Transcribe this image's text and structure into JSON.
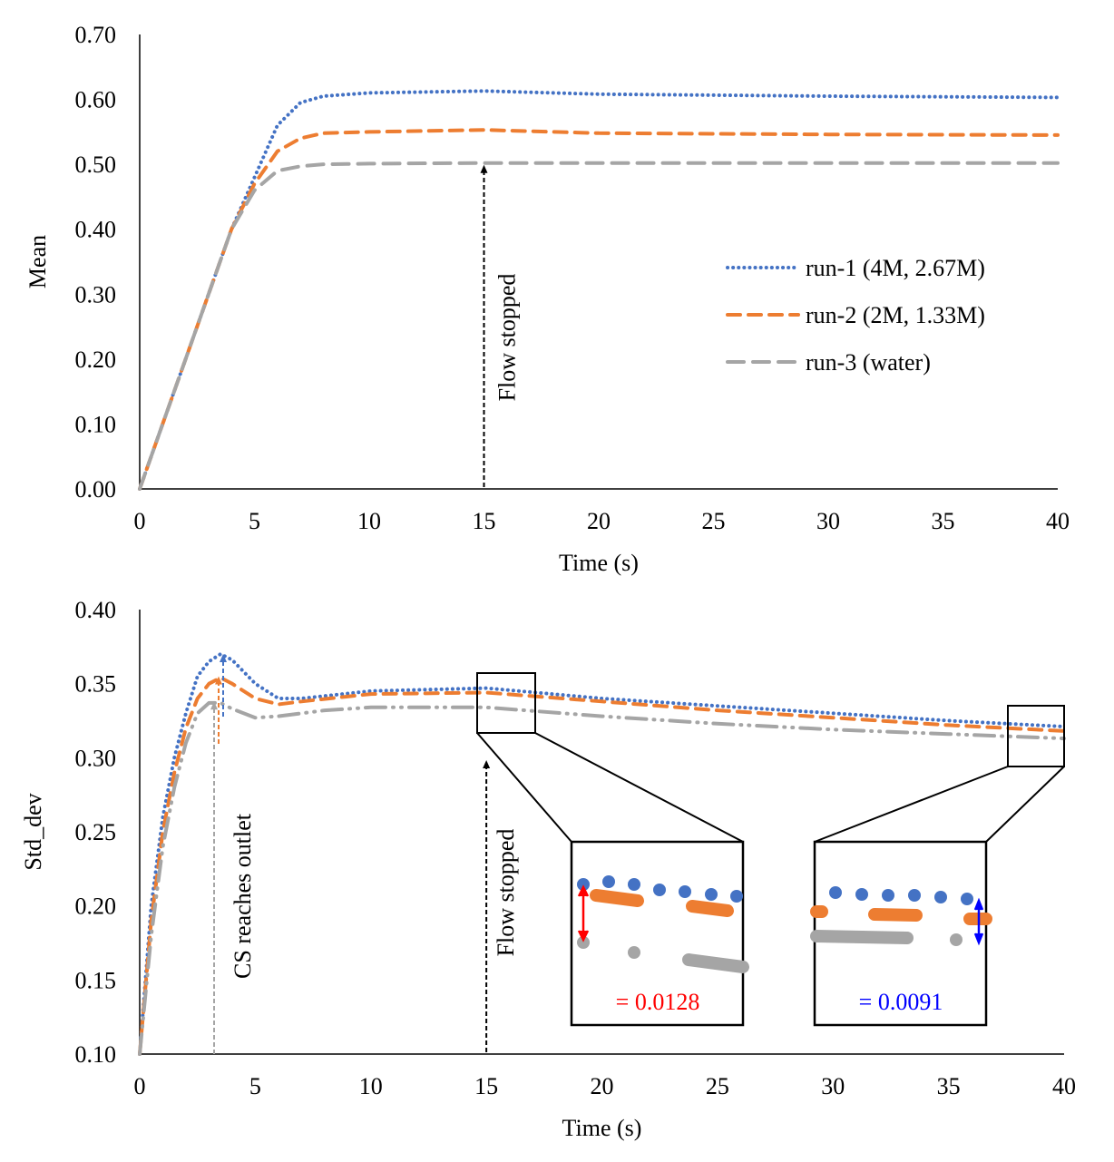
{
  "colors": {
    "run1": "#4472C4",
    "run2": "#ED7D31",
    "run3": "#A5A5A5",
    "red": "#FF0000",
    "blue": "#0000FF"
  },
  "chart_data": [
    {
      "type": "line",
      "xlabel": "Time (s)",
      "ylabel": "Mean",
      "xlim": [
        0,
        40
      ],
      "ylim": [
        0,
        0.7
      ],
      "xticks": [
        "0",
        "5",
        "10",
        "15",
        "20",
        "25",
        "30",
        "35",
        "40"
      ],
      "yticks": [
        "0.00",
        "0.10",
        "0.20",
        "0.30",
        "0.40",
        "0.50",
        "0.60",
        "0.70"
      ],
      "legend_position": "right",
      "grid": false,
      "annotation": {
        "text": "Flow stopped",
        "x": 15
      },
      "series": [
        {
          "name": "run-1 (4M, 2.67M)",
          "style": "dotted",
          "x": [
            0,
            1,
            2,
            3,
            4,
            5,
            6,
            7,
            8,
            10,
            15,
            20,
            30,
            40
          ],
          "y": [
            0,
            0.1,
            0.2,
            0.3,
            0.4,
            0.48,
            0.56,
            0.595,
            0.605,
            0.61,
            0.613,
            0.608,
            0.605,
            0.603
          ]
        },
        {
          "name": "run-2 (2M, 1.33M)",
          "style": "dashed",
          "x": [
            0,
            1,
            2,
            3,
            4,
            5,
            6,
            7,
            8,
            10,
            15,
            20,
            30,
            40
          ],
          "y": [
            0,
            0.1,
            0.2,
            0.3,
            0.4,
            0.47,
            0.52,
            0.54,
            0.548,
            0.55,
            0.553,
            0.548,
            0.546,
            0.545
          ]
        },
        {
          "name": "run-3 (water)",
          "style": "long-dash",
          "x": [
            0,
            1,
            2,
            3,
            4,
            5,
            6,
            7,
            8,
            10,
            15,
            40
          ],
          "y": [
            0,
            0.1,
            0.2,
            0.3,
            0.4,
            0.46,
            0.49,
            0.497,
            0.5,
            0.501,
            0.502,
            0.502
          ]
        }
      ]
    },
    {
      "type": "line",
      "xlabel": "Time (s)",
      "ylabel": "Std_dev",
      "xlim": [
        0,
        40
      ],
      "ylim": [
        0.1,
        0.4
      ],
      "xticks": [
        "0",
        "5",
        "10",
        "15",
        "20",
        "25",
        "30",
        "35",
        "40"
      ],
      "yticks": [
        "0.10",
        "0.15",
        "0.20",
        "0.25",
        "0.30",
        "0.35",
        "0.40"
      ],
      "grid": false,
      "annotations": [
        {
          "text": "CS reaches outlet",
          "x": 3.3
        },
        {
          "text": "Flow stopped",
          "x": 15
        }
      ],
      "insets": [
        {
          "label": "= 0.0128",
          "color": "red"
        },
        {
          "label": "= 0.0091",
          "color": "blue"
        }
      ],
      "series": [
        {
          "style": "dotted",
          "x": [
            0,
            0.5,
            1,
            1.5,
            2,
            2.5,
            3,
            3.5,
            4,
            5,
            6,
            7,
            10,
            15,
            20,
            25,
            30,
            35,
            40
          ],
          "y": [
            0.1,
            0.2,
            0.26,
            0.3,
            0.33,
            0.355,
            0.365,
            0.37,
            0.366,
            0.35,
            0.34,
            0.34,
            0.345,
            0.347,
            0.34,
            0.335,
            0.33,
            0.325,
            0.321
          ]
        },
        {
          "style": "dashed",
          "x": [
            0,
            0.5,
            1,
            1.5,
            2,
            2.5,
            3,
            3.5,
            4,
            5,
            6,
            7,
            10,
            15,
            20,
            25,
            30,
            35,
            40
          ],
          "y": [
            0.1,
            0.19,
            0.25,
            0.29,
            0.32,
            0.34,
            0.35,
            0.354,
            0.35,
            0.34,
            0.336,
            0.338,
            0.343,
            0.344,
            0.338,
            0.332,
            0.327,
            0.322,
            0.318
          ]
        },
        {
          "style": "dash-dot-dot",
          "x": [
            0,
            0.5,
            1,
            1.5,
            2,
            2.5,
            3,
            3.5,
            4,
            5,
            6,
            8,
            10,
            15,
            20,
            25,
            30,
            35,
            40
          ],
          "y": [
            0.1,
            0.18,
            0.24,
            0.28,
            0.31,
            0.33,
            0.337,
            0.337,
            0.333,
            0.327,
            0.328,
            0.332,
            0.334,
            0.334,
            0.328,
            0.323,
            0.319,
            0.316,
            0.313
          ]
        }
      ]
    }
  ]
}
